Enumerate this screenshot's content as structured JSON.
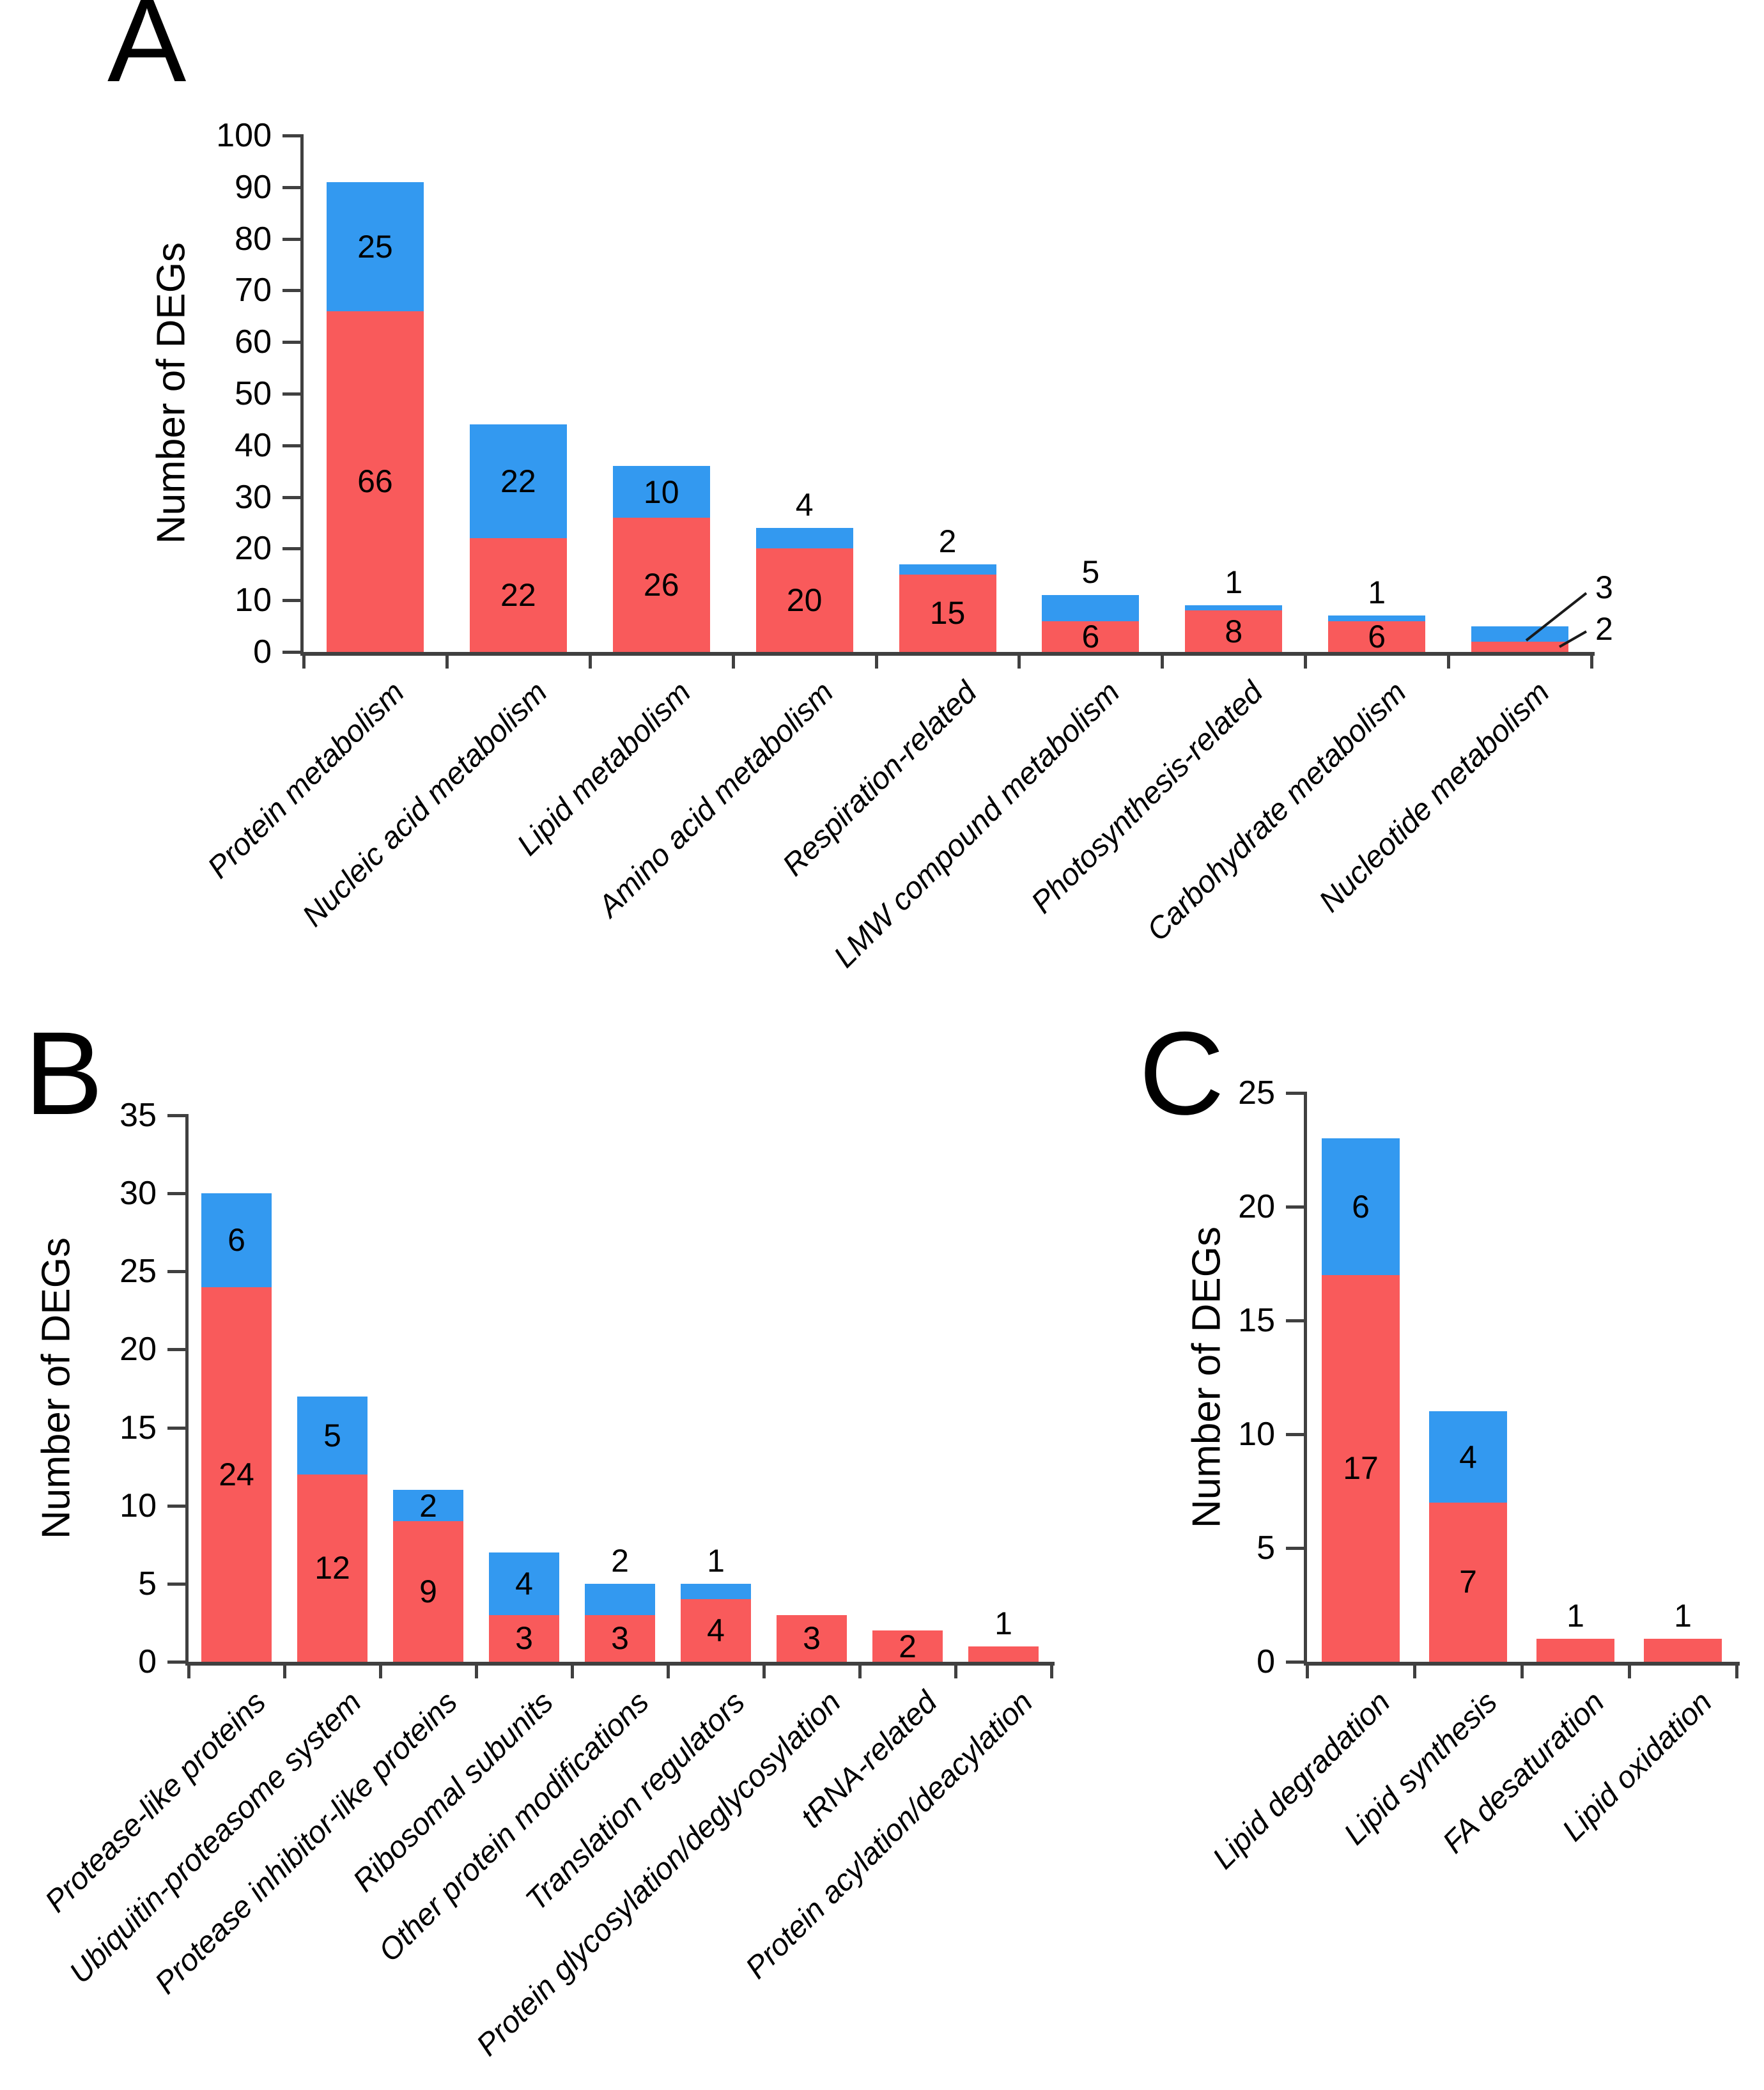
{
  "figure": {
    "panel_labels": [
      "A",
      "B",
      "C"
    ]
  },
  "colors": {
    "red": "#F95A5B",
    "blue": "#3399F0",
    "axis": "#404040",
    "text": "#000000"
  },
  "chart_data": [
    {
      "id": "A",
      "type": "bar",
      "stacked": true,
      "title": "",
      "xlabel": "",
      "ylabel": "Number of DEGs",
      "ylim": [
        0,
        100
      ],
      "yticks": [
        0,
        10,
        20,
        30,
        40,
        50,
        60,
        70,
        80,
        90,
        100
      ],
      "grid": false,
      "legend": "none",
      "categories": [
        "Protein metabolism",
        "Nucleic acid metabolism",
        "Lipid metabolism",
        "Amino acid metabolism",
        "Respiration-related",
        "LMW compound metabolism",
        "Photosynthesis-related",
        "Carbohydrate metabolism",
        "Nucleotide metabolism"
      ],
      "series": [
        {
          "name": "red",
          "color_key": "red",
          "values": [
            66,
            22,
            26,
            20,
            15,
            6,
            8,
            6,
            2
          ],
          "label_pos": [
            "in",
            "in",
            "in",
            "in",
            "in",
            "in",
            "in",
            "in",
            "leader"
          ]
        },
        {
          "name": "blue",
          "color_key": "blue",
          "values": [
            25,
            22,
            10,
            4,
            2,
            5,
            1,
            1,
            3
          ],
          "label_pos": [
            "in",
            "in",
            "in",
            "above",
            "above",
            "above",
            "above",
            "above",
            "leader"
          ]
        }
      ]
    },
    {
      "id": "B",
      "type": "bar",
      "stacked": true,
      "title": "",
      "xlabel": "",
      "ylabel": "Number of DEGs",
      "ylim": [
        0,
        35
      ],
      "yticks": [
        0,
        5,
        10,
        15,
        20,
        25,
        30,
        35
      ],
      "grid": false,
      "legend": "none",
      "categories": [
        "Protease-like proteins",
        "Ubiquitin-proteasome system",
        "Protease inhibitor-like proteins",
        "Ribosomal subunits",
        "Other protein modifications",
        "Translation regulators",
        "Protein glycosylation/deglycosylation",
        "tRNA-related",
        "Protein acylation/deacylation"
      ],
      "series": [
        {
          "name": "red",
          "color_key": "red",
          "values": [
            24,
            12,
            9,
            3,
            3,
            4,
            3,
            2,
            1
          ],
          "label_pos": [
            "in",
            "in",
            "in",
            "in",
            "in",
            "in",
            "in",
            "in",
            "above"
          ]
        },
        {
          "name": "blue",
          "color_key": "blue",
          "values": [
            6,
            5,
            2,
            4,
            2,
            1,
            0,
            0,
            0
          ],
          "label_pos": [
            "in",
            "in",
            "in",
            "in",
            "above",
            "above",
            "none",
            "none",
            "none"
          ]
        }
      ]
    },
    {
      "id": "C",
      "type": "bar",
      "stacked": true,
      "title": "",
      "xlabel": "",
      "ylabel": "Number of DEGs",
      "ylim": [
        0,
        25
      ],
      "yticks": [
        0,
        5,
        10,
        15,
        20,
        25
      ],
      "grid": false,
      "legend": "none",
      "categories": [
        "Lipid degradation",
        "Lipid synthesis",
        "FA desaturation",
        "Lipid oxidation"
      ],
      "series": [
        {
          "name": "red",
          "color_key": "red",
          "values": [
            17,
            7,
            1,
            1
          ],
          "label_pos": [
            "in",
            "in",
            "above",
            "above"
          ]
        },
        {
          "name": "blue",
          "color_key": "blue",
          "values": [
            6,
            4,
            0,
            0
          ],
          "label_pos": [
            "in",
            "in",
            "none",
            "none"
          ]
        }
      ]
    }
  ]
}
